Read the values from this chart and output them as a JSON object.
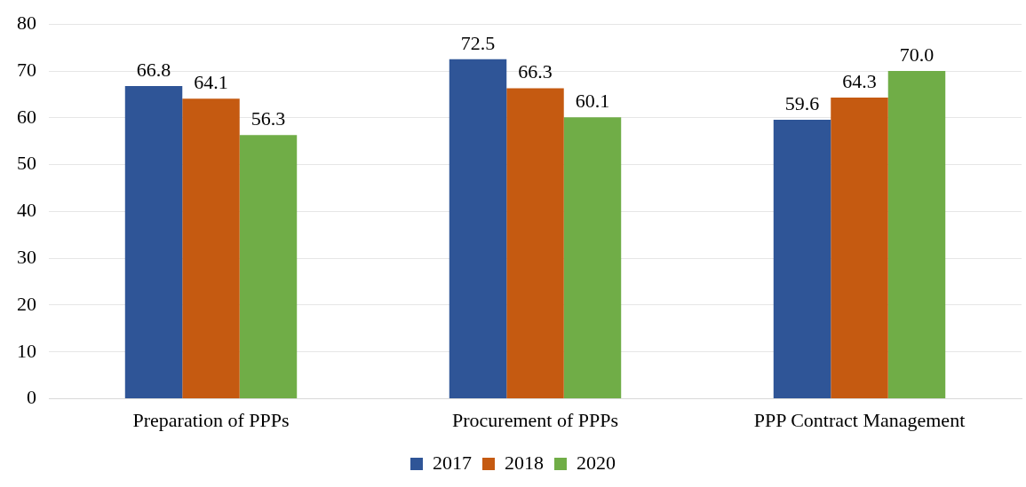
{
  "chart_data": {
    "type": "bar",
    "categories": [
      "Preparation of PPPs",
      "Procurement of PPPs",
      "PPP Contract Management"
    ],
    "series": [
      {
        "name": "2017",
        "color": "#2f5597",
        "values": [
          66.8,
          72.5,
          59.6
        ]
      },
      {
        "name": "2018",
        "color": "#c55a11",
        "values": [
          64.1,
          66.3,
          64.3
        ]
      },
      {
        "name": "2020",
        "color": "#70ad47",
        "values": [
          56.3,
          60.1,
          70.0
        ]
      }
    ],
    "ylim": [
      0,
      80
    ],
    "yticks": [
      0,
      10,
      20,
      30,
      40,
      50,
      60,
      70,
      80
    ],
    "grid": "y",
    "legend": "bottom",
    "value_labels": [
      [
        "66.8",
        "72.5",
        "59.6"
      ],
      [
        "64.1",
        "66.3",
        "64.3"
      ],
      [
        "56.3",
        "60.1",
        "70.0"
      ]
    ]
  }
}
